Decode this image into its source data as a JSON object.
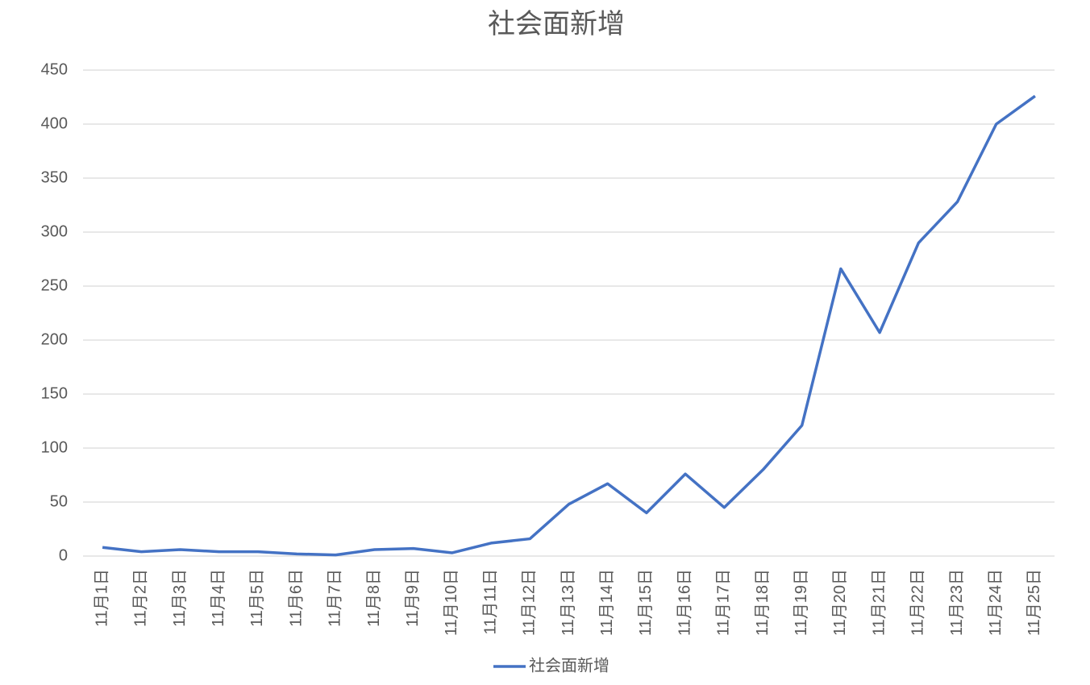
{
  "chart_data": {
    "type": "line",
    "title": "社会面新增",
    "categories": [
      "11月1日",
      "11月2日",
      "11月3日",
      "11月4日",
      "11月5日",
      "11月6日",
      "11月7日",
      "11月8日",
      "11月9日",
      "11月10日",
      "11月11日",
      "11月12日",
      "11月13日",
      "11月14日",
      "11月15日",
      "11月16日",
      "11月17日",
      "11月18日",
      "11月19日",
      "11月20日",
      "11月21日",
      "11月22日",
      "11月23日",
      "11月24日",
      "11月25日"
    ],
    "series": [
      {
        "name": "社会面新增",
        "color": "#4472c4",
        "values": [
          8,
          4,
          6,
          4,
          4,
          2,
          1,
          6,
          7,
          3,
          12,
          16,
          48,
          67,
          40,
          76,
          45,
          80,
          121,
          266,
          207,
          290,
          328,
          400,
          426
        ]
      }
    ],
    "ylim": [
      0,
      450
    ],
    "yticks": [
      0,
      50,
      100,
      150,
      200,
      250,
      300,
      350,
      400,
      450
    ],
    "grid": true,
    "legend": "bottom"
  }
}
